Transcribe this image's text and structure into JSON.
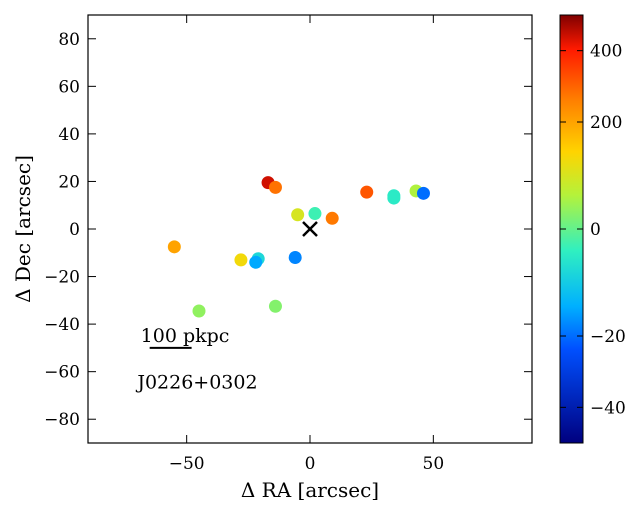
{
  "chart_data": {
    "type": "scatter",
    "title": "",
    "xlabel": "Δ RA [arcsec]",
    "ylabel": "Δ Dec [arcsec]",
    "xlim": [
      -90,
      90
    ],
    "ylim": [
      -90,
      90
    ],
    "xticks": [
      -50,
      0,
      50
    ],
    "yticks": [
      -80,
      -60,
      -40,
      -20,
      0,
      20,
      40,
      60,
      80
    ],
    "xtick_labels": [
      "−50",
      "0",
      "50"
    ],
    "ytick_labels": [
      "−80",
      "−60",
      "−40",
      "−20",
      "0",
      "20",
      "40",
      "60",
      "80"
    ],
    "grid": false,
    "colormap": "jet",
    "colorbar": {
      "range": [
        -50,
        500
      ],
      "ticks": [
        -40,
        -20,
        0,
        200,
        400
      ],
      "tick_labels": [
        "−40",
        "−20",
        "0",
        "200",
        "400"
      ],
      "display_anchors": [
        -50,
        -20,
        0,
        200,
        500
      ]
    },
    "points": [
      {
        "x": -17,
        "y": 19.5,
        "v": 440
      },
      {
        "x": -14,
        "y": 17.5,
        "v": 280
      },
      {
        "x": 23,
        "y": 15.5,
        "v": 320
      },
      {
        "x": 34,
        "y": 14.0,
        "v": -5
      },
      {
        "x": 34,
        "y": 13.0,
        "v": -5
      },
      {
        "x": 43,
        "y": 16.0,
        "v": 60
      },
      {
        "x": 46,
        "y": 15.0,
        "v": -20
      },
      {
        "x": -5,
        "y": 6.0,
        "v": 100
      },
      {
        "x": 2,
        "y": 6.5,
        "v": -3
      },
      {
        "x": 9,
        "y": 4.5,
        "v": 270
      },
      {
        "x": -55,
        "y": -7.5,
        "v": 200
      },
      {
        "x": -6,
        "y": -12.0,
        "v": -18
      },
      {
        "x": -21,
        "y": -12.5,
        "v": -8
      },
      {
        "x": -22,
        "y": -14.0,
        "v": -15
      },
      {
        "x": -28,
        "y": -13.0,
        "v": 130
      },
      {
        "x": -14,
        "y": -32.5,
        "v": 25
      },
      {
        "x": -45,
        "y": -34.5,
        "v": 35
      }
    ],
    "center_marker": {
      "x": 0,
      "y": 0,
      "symbol": "×"
    },
    "scale_bar": {
      "label": "100 pkpc",
      "x_start": -65,
      "x_end": -48,
      "y": -50
    },
    "annotation": {
      "text": "J0226+0302",
      "x": -70,
      "y": -67
    }
  }
}
